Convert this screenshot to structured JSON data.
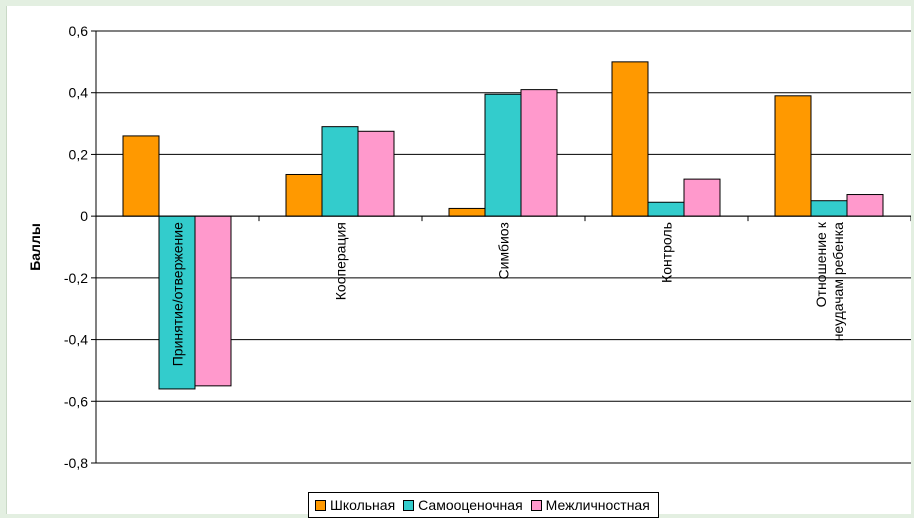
{
  "chart_data": {
    "type": "bar",
    "ylabel": "Баллы",
    "ylim": [
      -0.8,
      0.6
    ],
    "yticks": [
      -0.8,
      -0.6,
      -0.4,
      -0.2,
      0,
      0.2,
      0.4,
      0.6
    ],
    "ytick_labels": [
      "-0,8",
      "-0,6",
      "-0,4",
      "-0,2",
      "0",
      "0,2",
      "0,4",
      "0,6"
    ],
    "categories": [
      [
        "Принятие/отвержение"
      ],
      [
        "Кооперация"
      ],
      [
        "Симбиоз"
      ],
      [
        "Контроль"
      ],
      [
        "Отношение к",
        "неудачам ребенка"
      ]
    ],
    "series": [
      {
        "name": "Школьная",
        "color": "#ff9900",
        "values": [
          0.26,
          0.135,
          0.025,
          0.5,
          0.39
        ]
      },
      {
        "name": "Самооценочная",
        "color": "#33cccc",
        "values": [
          -0.56,
          0.29,
          0.395,
          0.045,
          0.05
        ]
      },
      {
        "name": "Межличностная",
        "color": "#ff99cc",
        "values": [
          -0.55,
          0.275,
          0.41,
          0.12,
          0.07
        ]
      }
    ],
    "grid": true,
    "legend_position": "bottom"
  }
}
